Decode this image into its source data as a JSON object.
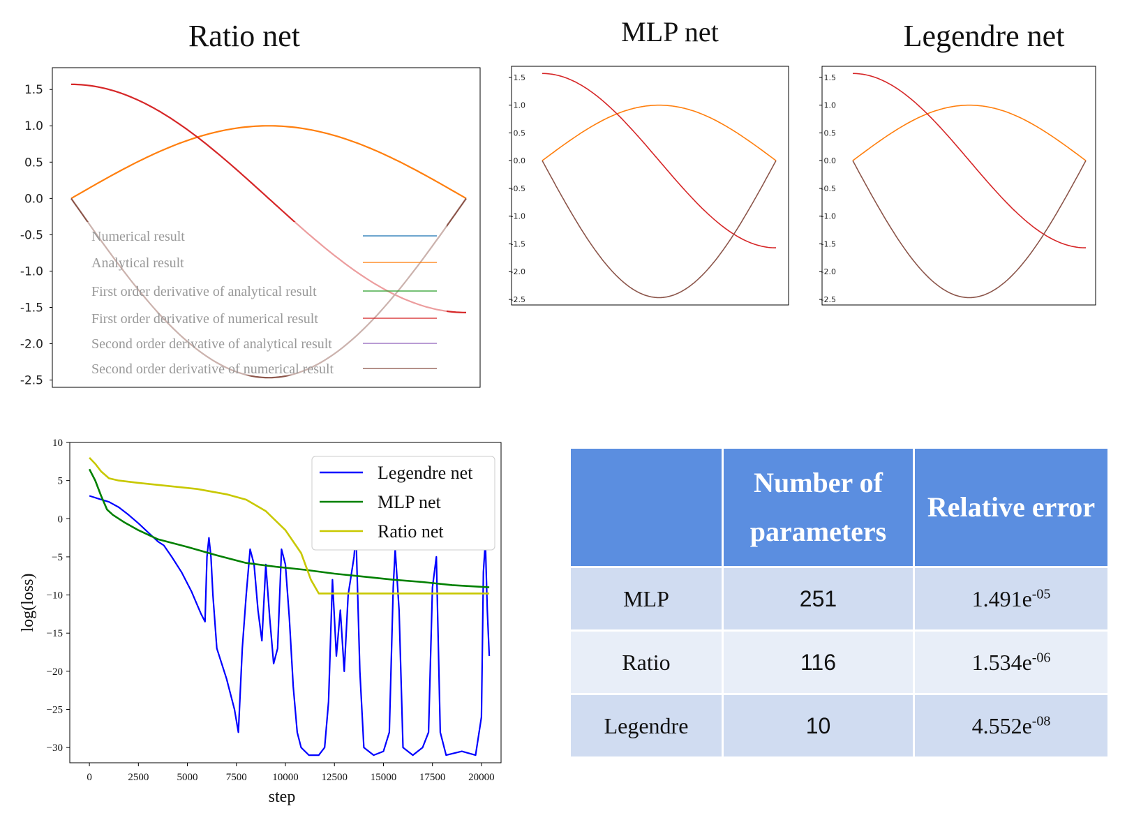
{
  "titles": {
    "ratio": "Ratio net",
    "mlp": "MLP net",
    "legendre": "Legendre net"
  },
  "chart_data": [
    {
      "type": "line",
      "title": "Ratio net",
      "ylim": [
        -2.6,
        1.8
      ],
      "xlim": [
        0,
        3.14159
      ],
      "yticks": [
        "1.5",
        "1.0",
        "0.5",
        "0.0",
        "-0.5",
        "-1.0",
        "-1.5",
        "-2.0",
        "-2.5"
      ],
      "grid": false,
      "legend_position": "lower-center",
      "series": [
        {
          "name": "Numerical result",
          "color": "#1f77b4",
          "function": "sin"
        },
        {
          "name": "Analytical result",
          "color": "#ff7f0e",
          "function": "sin"
        },
        {
          "name": "First order derivative of analytical result",
          "color": "#2ca02c",
          "function": "pi/2*cos"
        },
        {
          "name": "First order derivative of numerical result",
          "color": "#d62728",
          "function": "pi/2*cos"
        },
        {
          "name": "Second order derivative of analytical result",
          "color": "#9467bd",
          "function": "-pi^2/4*sin"
        },
        {
          "name": "Second order derivative of numerical result",
          "color": "#8c564b",
          "function": "-pi^2/4*sin"
        }
      ]
    },
    {
      "type": "line",
      "title": "MLP net",
      "ylim": [
        -2.6,
        1.7
      ],
      "xlim": [
        0,
        3.14159
      ],
      "yticks": [
        "1.5",
        "1.0",
        "0.5",
        "0.0",
        "-0.5",
        "-1.0",
        "-1.5",
        "-2.0",
        "-2.5"
      ],
      "series": [
        {
          "color": "#ff7f0e",
          "function": "sin"
        },
        {
          "color": "#d62728",
          "function": "pi/2*cos"
        },
        {
          "color": "#8c564b",
          "function": "-pi^2/4*sin"
        }
      ]
    },
    {
      "type": "line",
      "title": "Legendre net",
      "ylim": [
        -2.6,
        1.7
      ],
      "xlim": [
        0,
        3.14159
      ],
      "yticks": [
        "1.5",
        "1.0",
        "0.5",
        "0.0",
        "-0.5",
        "-1.0",
        "-1.5",
        "-2.0",
        "-2.5"
      ],
      "series": [
        {
          "color": "#ff7f0e",
          "function": "sin"
        },
        {
          "color": "#d62728",
          "function": "pi/2*cos"
        },
        {
          "color": "#8c564b",
          "function": "-pi^2/4*sin"
        }
      ]
    },
    {
      "type": "line",
      "xlabel": "step",
      "ylabel": "log(loss)",
      "xlim": [
        -1000,
        21000
      ],
      "ylim": [
        -32,
        10
      ],
      "xticks": [
        0,
        2500,
        5000,
        7500,
        10000,
        12500,
        15000,
        17500,
        20000
      ],
      "yticks": [
        10,
        5,
        0,
        -5,
        -10,
        -15,
        -20,
        -25,
        -30
      ],
      "legend_position": "top-right",
      "series": [
        {
          "name": "Legendre net",
          "color": "#0000ff",
          "points": [
            [
              0,
              3
            ],
            [
              500,
              2.6
            ],
            [
              1000,
              2.2
            ],
            [
              1500,
              1.5
            ],
            [
              2000,
              0.5
            ],
            [
              2500,
              -0.6
            ],
            [
              3000,
              -1.8
            ],
            [
              3500,
              -3.0
            ],
            [
              3800,
              -3.5
            ],
            [
              4200,
              -5
            ],
            [
              4700,
              -7
            ],
            [
              5200,
              -9.5
            ],
            [
              5700,
              -12.5
            ],
            [
              5900,
              -13.5
            ],
            [
              6000,
              -5
            ],
            [
              6100,
              -2.5
            ],
            [
              6200,
              -5
            ],
            [
              6300,
              -10
            ],
            [
              6500,
              -17
            ],
            [
              7000,
              -21
            ],
            [
              7400,
              -25
            ],
            [
              7600,
              -28
            ],
            [
              7800,
              -17
            ],
            [
              8000,
              -10
            ],
            [
              8200,
              -4
            ],
            [
              8400,
              -6
            ],
            [
              8600,
              -12
            ],
            [
              8800,
              -16
            ],
            [
              9000,
              -6
            ],
            [
              9200,
              -13
            ],
            [
              9400,
              -19
            ],
            [
              9600,
              -17
            ],
            [
              9800,
              -4
            ],
            [
              10000,
              -6
            ],
            [
              10200,
              -13
            ],
            [
              10400,
              -22
            ],
            [
              10600,
              -28
            ],
            [
              10800,
              -30
            ],
            [
              11200,
              -31
            ],
            [
              11700,
              -31
            ],
            [
              12000,
              -30
            ],
            [
              12200,
              -24
            ],
            [
              12400,
              -8
            ],
            [
              12600,
              -18
            ],
            [
              12800,
              -12
            ],
            [
              13000,
              -20
            ],
            [
              13200,
              -10
            ],
            [
              13500,
              -5
            ],
            [
              13600,
              -2
            ],
            [
              13800,
              -20
            ],
            [
              14000,
              -30
            ],
            [
              14500,
              -31
            ],
            [
              15000,
              -30.5
            ],
            [
              15300,
              -28
            ],
            [
              15500,
              -9
            ],
            [
              15600,
              -4
            ],
            [
              15800,
              -12
            ],
            [
              16000,
              -30
            ],
            [
              16500,
              -31
            ],
            [
              17000,
              -30
            ],
            [
              17300,
              -28
            ],
            [
              17500,
              -9
            ],
            [
              17700,
              -5
            ],
            [
              17900,
              -28
            ],
            [
              18200,
              -31
            ],
            [
              19000,
              -30.5
            ],
            [
              19700,
              -31
            ],
            [
              20000,
              -26
            ],
            [
              20100,
              -7
            ],
            [
              20200,
              -3
            ],
            [
              20300,
              -12
            ],
            [
              20400,
              -18
            ]
          ]
        },
        {
          "name": "MLP net",
          "color": "#008000",
          "points": [
            [
              0,
              6.5
            ],
            [
              300,
              5
            ],
            [
              600,
              3
            ],
            [
              900,
              1.2
            ],
            [
              1200,
              0.5
            ],
            [
              1800,
              -0.5
            ],
            [
              2500,
              -1.5
            ],
            [
              3500,
              -2.7
            ],
            [
              5000,
              -3.7
            ],
            [
              6500,
              -4.8
            ],
            [
              8000,
              -5.8
            ],
            [
              9500,
              -6.3
            ],
            [
              11000,
              -6.7
            ],
            [
              12500,
              -7.2
            ],
            [
              14000,
              -7.6
            ],
            [
              15500,
              -8.0
            ],
            [
              17000,
              -8.3
            ],
            [
              18500,
              -8.7
            ],
            [
              20400,
              -9.0
            ]
          ]
        },
        {
          "name": "Ratio net",
          "color": "#c8c800",
          "points": [
            [
              0,
              8
            ],
            [
              300,
              7.2
            ],
            [
              600,
              6.2
            ],
            [
              1000,
              5.3
            ],
            [
              1500,
              5.0
            ],
            [
              2500,
              4.7
            ],
            [
              4000,
              4.3
            ],
            [
              5500,
              3.9
            ],
            [
              7000,
              3.2
            ],
            [
              8000,
              2.5
            ],
            [
              9000,
              1.0
            ],
            [
              10000,
              -1.5
            ],
            [
              10800,
              -4.5
            ],
            [
              11300,
              -8
            ],
            [
              11700,
              -9.8
            ],
            [
              12500,
              -9.8
            ],
            [
              15000,
              -9.8
            ],
            [
              18000,
              -9.8
            ],
            [
              20400,
              -9.8
            ]
          ]
        }
      ]
    }
  ],
  "table": {
    "headers": [
      "",
      "Number of parameters",
      "Relative error"
    ],
    "rows": [
      {
        "model": "MLP",
        "params": "251",
        "error_mantissa": "1.491e",
        "error_exp": "-05"
      },
      {
        "model": "Ratio",
        "params": "116",
        "error_mantissa": "1.534e",
        "error_exp": "-06"
      },
      {
        "model": "Legendre",
        "params": "10",
        "error_mantissa": "4.552e",
        "error_exp": "-08"
      }
    ]
  }
}
